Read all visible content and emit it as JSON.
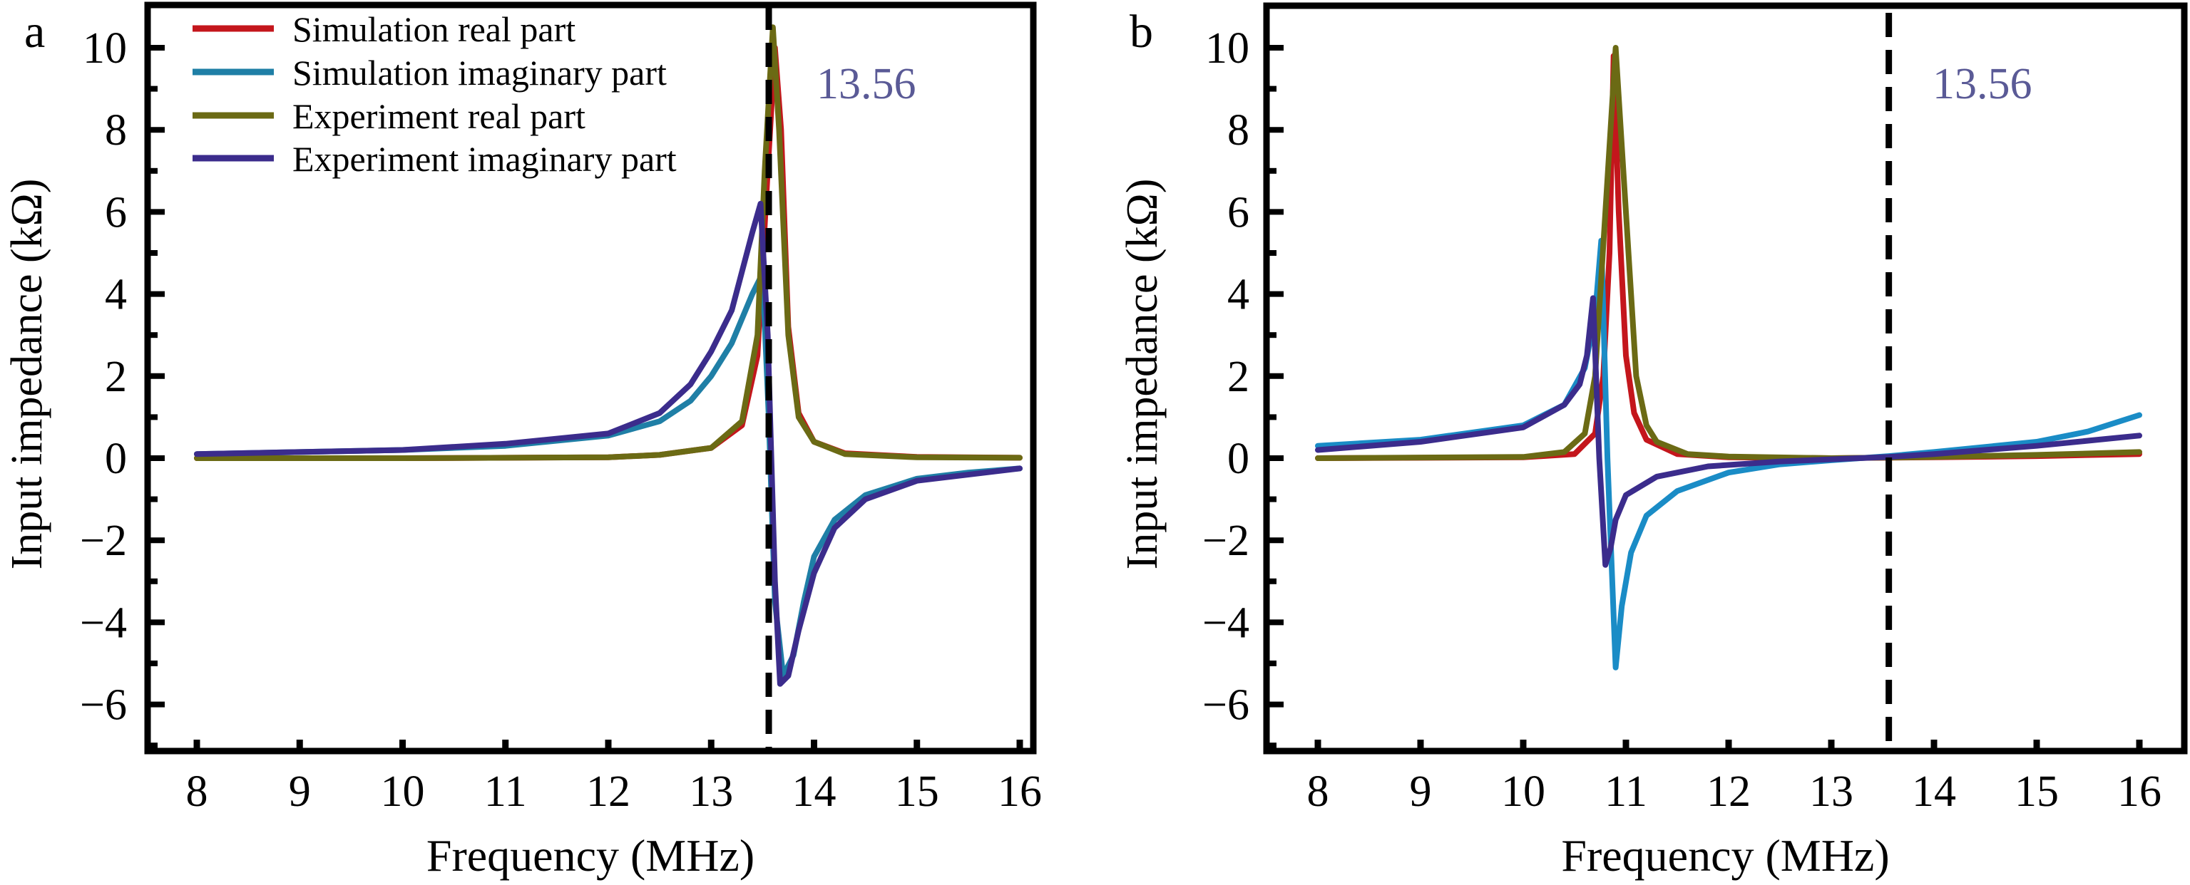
{
  "chart_data": [
    {
      "panel_label": "a",
      "type": "line",
      "xlabel": "Frequency (MHz)",
      "ylabel": "Input impedance (kΩ)",
      "xlim": [
        7.5,
        16.2
      ],
      "ylim": [
        -7.1,
        11
      ],
      "xticks": [
        "8",
        "9",
        "10",
        "11",
        "12",
        "13",
        "14",
        "15",
        "16"
      ],
      "xtick_values": [
        8,
        9,
        10,
        11,
        12,
        13,
        14,
        15,
        16
      ],
      "yticks": [
        "10",
        "8",
        "6",
        "4",
        "2",
        "0",
        "−2",
        "−4",
        "−6"
      ],
      "ytick_values": [
        10,
        8,
        6,
        4,
        2,
        0,
        -2,
        -4,
        -6
      ],
      "vline": {
        "x": 13.56,
        "label": "13.56",
        "style": "dashed"
      },
      "legend_position": "top-left",
      "series": [
        {
          "name": "Simulation real part",
          "color": "#c4161c",
          "x": [
            8,
            10,
            12,
            12.5,
            13.0,
            13.3,
            13.45,
            13.55,
            13.62,
            13.68,
            13.75,
            13.85,
            14.0,
            14.3,
            15,
            16
          ],
          "y": [
            0,
            0,
            0.02,
            0.08,
            0.25,
            0.8,
            2.5,
            7,
            10,
            8,
            3.2,
            1.1,
            0.4,
            0.12,
            0.03,
            0.01
          ]
        },
        {
          "name": "Simulation imaginary part",
          "color": "#1f7fa6",
          "x": [
            8,
            10,
            11,
            12,
            12.5,
            12.8,
            13.0,
            13.2,
            13.4,
            13.5,
            13.56,
            13.62,
            13.7,
            13.8,
            13.9,
            14.0,
            14.2,
            14.5,
            15,
            15.5,
            16
          ],
          "y": [
            0.1,
            0.2,
            0.3,
            0.55,
            0.9,
            1.4,
            2.0,
            2.8,
            4.0,
            4.5,
            1,
            -3.5,
            -5.3,
            -4.8,
            -3.5,
            -2.4,
            -1.5,
            -0.9,
            -0.5,
            -0.35,
            -0.25
          ]
        },
        {
          "name": "Experiment real part",
          "color": "#6b6a14",
          "x": [
            8,
            10,
            12,
            12.5,
            13.0,
            13.3,
            13.45,
            13.52,
            13.6,
            13.66,
            13.75,
            13.85,
            14.0,
            14.3,
            15,
            16
          ],
          "y": [
            0,
            0,
            0.02,
            0.08,
            0.25,
            0.9,
            3,
            7,
            10.5,
            8,
            3,
            1,
            0.4,
            0.1,
            0.02,
            0.01
          ]
        },
        {
          "name": "Experiment imaginary part",
          "color": "#3b2c8c",
          "x": [
            8,
            10,
            11,
            12,
            12.5,
            12.8,
            13.0,
            13.2,
            13.4,
            13.48,
            13.55,
            13.62,
            13.67,
            13.75,
            13.85,
            14.0,
            14.2,
            14.5,
            15,
            16
          ],
          "y": [
            0.1,
            0.2,
            0.35,
            0.6,
            1.1,
            1.8,
            2.6,
            3.6,
            5.5,
            6.2,
            3,
            -3,
            -5.5,
            -5.3,
            -4.2,
            -2.8,
            -1.7,
            -1.0,
            -0.55,
            -0.25
          ]
        }
      ]
    },
    {
      "panel_label": "b",
      "type": "line",
      "xlabel": "Frequency (MHz)",
      "ylabel": "Input impedance (kΩ)",
      "xlim": [
        7.5,
        16.45
      ],
      "ylim": [
        -7.1,
        11
      ],
      "xticks": [
        "8",
        "9",
        "10",
        "11",
        "12",
        "13",
        "14",
        "15",
        "16"
      ],
      "xtick_values": [
        8,
        9,
        10,
        11,
        12,
        13,
        14,
        15,
        16
      ],
      "yticks": [
        "10",
        "8",
        "6",
        "4",
        "2",
        "0",
        "−2",
        "−4",
        "−6"
      ],
      "ytick_values": [
        10,
        8,
        6,
        4,
        2,
        0,
        -2,
        -4,
        -6
      ],
      "vline": {
        "x": 13.56,
        "label": "13.56",
        "style": "dashed"
      },
      "series": [
        {
          "name": "Simulation real part",
          "color": "#c4161c",
          "x": [
            8,
            10,
            10.5,
            10.7,
            10.78,
            10.84,
            10.88,
            10.93,
            11.0,
            11.08,
            11.2,
            11.5,
            12,
            13,
            14,
            15,
            16
          ],
          "y": [
            0,
            0.02,
            0.1,
            0.6,
            2,
            5,
            9.8,
            6,
            2.5,
            1.1,
            0.45,
            0.1,
            0.02,
            0,
            0.02,
            0.05,
            0.1
          ]
        },
        {
          "name": "Simulation imaginary part",
          "color": "#1a8cc6",
          "x": [
            8,
            9,
            10,
            10.4,
            10.6,
            10.7,
            10.76,
            10.82,
            10.9,
            10.96,
            11.05,
            11.2,
            11.5,
            12,
            12.5,
            13,
            13.56,
            14,
            15,
            15.5,
            16
          ],
          "y": [
            0.3,
            0.45,
            0.8,
            1.3,
            2.2,
            3.5,
            5.3,
            0,
            -5.1,
            -3.6,
            -2.3,
            -1.4,
            -0.8,
            -0.35,
            -0.15,
            -0.05,
            0.05,
            0.15,
            0.4,
            0.65,
            1.05
          ]
        },
        {
          "name": "Experiment real part",
          "color": "#6b6a14",
          "x": [
            8,
            10,
            10.4,
            10.6,
            10.7,
            10.8,
            10.9,
            11.0,
            11.1,
            11.2,
            11.3,
            11.6,
            12,
            13,
            14,
            15,
            16
          ],
          "y": [
            0,
            0.03,
            0.15,
            0.6,
            2,
            6,
            10,
            6,
            2,
            0.8,
            0.4,
            0.1,
            0.04,
            0,
            0.03,
            0.08,
            0.15
          ]
        },
        {
          "name": "Experiment imaginary part",
          "color": "#3b2c8c",
          "x": [
            8,
            9,
            10,
            10.4,
            10.55,
            10.62,
            10.68,
            10.74,
            10.8,
            10.85,
            10.9,
            11.0,
            11.3,
            11.8,
            12.5,
            13.56,
            14,
            15,
            16
          ],
          "y": [
            0.2,
            0.4,
            0.75,
            1.3,
            1.8,
            2.5,
            3.9,
            0,
            -2.6,
            -2.2,
            -1.5,
            -0.9,
            -0.45,
            -0.2,
            -0.08,
            0.03,
            0.1,
            0.3,
            0.55
          ]
        }
      ]
    }
  ]
}
